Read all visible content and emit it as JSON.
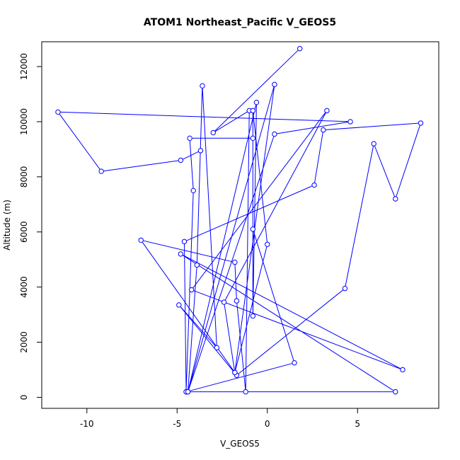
{
  "chart_data": {
    "type": "line",
    "title": "ATOM1 Northeast_Pacific V_GEOS5",
    "xlabel": "V_GEOS5",
    "ylabel": "Altitude (m)",
    "xlim": [
      -12.5,
      9.5
    ],
    "ylim": [
      -400,
      12900
    ],
    "x_ticks": [
      -10,
      -5,
      0,
      5
    ],
    "y_ticks": [
      0,
      2000,
      4000,
      6000,
      8000,
      10000,
      12000
    ],
    "x_tick_labels": [
      "-10",
      "-5",
      "0",
      "5"
    ],
    "y_tick_labels": [
      "0",
      "2000",
      "4000",
      "6000",
      "8000",
      "10000",
      "12000"
    ],
    "grid": false,
    "series": [
      {
        "color": "#0000ff",
        "marker": "open-circle",
        "x": [
          1.8,
          -3.0,
          -1.0,
          -1.2,
          -1.7,
          -1.8,
          -7.0,
          -1.8,
          0.0,
          -0.8,
          -0.8,
          -0.6,
          -4.4,
          -3.9,
          -3.6,
          -2.8,
          -4.9,
          -1.7,
          4.3,
          5.9,
          7.1,
          8.5,
          3.1,
          2.6,
          -4.6,
          -4.5,
          1.5,
          -0.8,
          -0.8,
          -4.3,
          -4.1,
          -4.5,
          7.1,
          -4.8,
          7.5,
          -4.2,
          3.3,
          -2.4,
          -1.8,
          0.4,
          -4.4,
          0.4,
          4.6,
          -11.6,
          -9.2,
          -4.8,
          -3.7
        ],
        "y": [
          12650,
          9600,
          10400,
          200,
          3500,
          4900,
          5700,
          900,
          5550,
          10400,
          2950,
          10700,
          200,
          4800,
          11300,
          1800,
          3350,
          800,
          3950,
          9200,
          7200,
          9950,
          9700,
          7700,
          5650,
          200,
          1250,
          6100,
          9400,
          9400,
          7500,
          200,
          200,
          5200,
          1000,
          3900,
          10400,
          3450,
          900,
          11350,
          200,
          9550,
          10000,
          10350,
          8200,
          8600,
          8950
        ]
      }
    ]
  }
}
